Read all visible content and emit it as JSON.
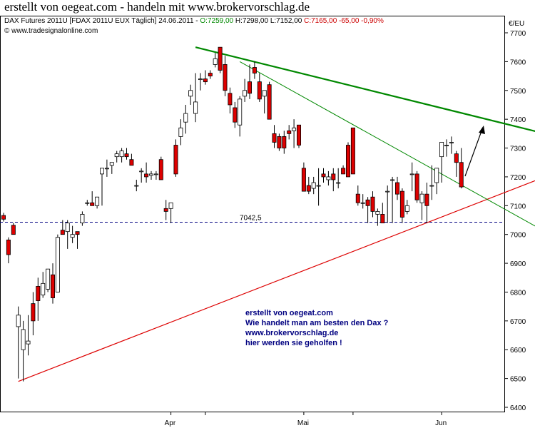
{
  "page_title": "erstellt von oegeat.com - handeln mit www.brokervorschlag.de",
  "header": {
    "instrument": "DAX Futures 2011U [FDAX 2011U EUX  Täglich] 24.06.2011 - ",
    "open": "O:7259,00",
    "high_low": " H:7298,00 L:7152,00 ",
    "close": "C:7165,00 -65,00 -0,90%",
    "copyright": "© www.tradesignalonline.com"
  },
  "colors": {
    "up": "#ffffff",
    "down": "#dd0000",
    "wick": "#000000",
    "support": "#dd0000",
    "resistance": "#008800",
    "level": "#000080",
    "open_text": "#008800",
    "close_text": "#cc0000"
  },
  "chart_data": {
    "type": "candlestick",
    "unit_label": "€/EU",
    "y_ticks": [
      6400,
      6500,
      6600,
      6700,
      6800,
      6900,
      7000,
      7100,
      7200,
      7300,
      7400,
      7500,
      7600,
      7700
    ],
    "y_tick_labels": [
      "6400",
      "6500",
      "6600",
      "6700",
      "6800",
      "6900",
      "7000",
      "7100",
      "7200",
      "7300",
      "7400",
      "7500",
      "7600",
      "7700"
    ],
    "ylim": [
      6400,
      7780
    ],
    "x_labels": [
      {
        "label": "Apr",
        "bar": 34
      },
      {
        "label": "Mai",
        "bar": 61
      },
      {
        "label": "Jun",
        "bar": 89
      }
    ],
    "horizontal_level": {
      "value": 7042.5,
      "label": "7042,5"
    },
    "candles": [
      [
        7066,
        7075,
        7045,
        7053
      ],
      [
        6981,
        6990,
        6900,
        6930
      ],
      [
        7032,
        7040,
        7000,
        7000
      ],
      [
        6680,
        6750,
        6500,
        6720
      ],
      [
        6600,
        6700,
        6490,
        6670
      ],
      [
        6620,
        6720,
        6580,
        6630
      ],
      [
        6760,
        6800,
        6650,
        6700
      ],
      [
        6820,
        6850,
        6700,
        6770
      ],
      [
        6790,
        6870,
        6780,
        6830
      ],
      [
        6810,
        6880,
        6800,
        6880
      ],
      [
        6860,
        6900,
        6760,
        6780
      ],
      [
        6800,
        7000,
        6800,
        6990
      ],
      [
        7015,
        7050,
        7000,
        7000
      ],
      [
        7010,
        7050,
        6950,
        7040
      ],
      [
        6990,
        7030,
        6970,
        7000
      ],
      [
        7010,
        7000,
        6950,
        7000
      ],
      [
        7040,
        7080,
        7030,
        7070
      ],
      [
        7110,
        7120,
        7100,
        7110
      ],
      [
        7110,
        7150,
        7100,
        7100
      ],
      [
        7100,
        7130,
        7090,
        7130
      ],
      [
        7210,
        7230,
        7100,
        7230
      ],
      [
        7230,
        7260,
        7200,
        7230
      ],
      [
        7240,
        7250,
        7210,
        7250
      ],
      [
        7270,
        7290,
        7250,
        7280
      ],
      [
        7270,
        7300,
        7250,
        7290
      ],
      [
        7280,
        7300,
        7260,
        7270
      ],
      [
        7260,
        7280,
        7240,
        7240
      ],
      [
        7170,
        7190,
        7150,
        7170
      ],
      [
        7220,
        7230,
        7180,
        7220
      ],
      [
        7210,
        7250,
        7180,
        7200
      ],
      [
        7205,
        7220,
        7190,
        7210
      ],
      [
        7210,
        7220,
        7190,
        7210
      ],
      [
        7260,
        7270,
        7190,
        7190
      ],
      [
        7090,
        7120,
        7050,
        7080
      ],
      [
        7090,
        7110,
        7040,
        7110
      ],
      [
        7310,
        7330,
        7200,
        7210
      ],
      [
        7340,
        7400,
        7310,
        7370
      ],
      [
        7390,
        7450,
        7350,
        7420
      ],
      [
        7480,
        7520,
        7450,
        7500
      ],
      [
        7420,
        7560,
        7390,
        7460
      ],
      [
        7540,
        7560,
        7500,
        7540
      ],
      [
        7540,
        7570,
        7520,
        7530
      ],
      [
        7560,
        7570,
        7540,
        7550
      ],
      [
        7590,
        7630,
        7580,
        7610
      ],
      [
        7650,
        7650,
        7560,
        7570
      ],
      [
        7590,
        7620,
        7480,
        7500
      ],
      [
        7490,
        7510,
        7420,
        7450
      ],
      [
        7440,
        7460,
        7370,
        7390
      ],
      [
        7380,
        7480,
        7340,
        7470
      ],
      [
        7480,
        7540,
        7460,
        7500
      ],
      [
        7530,
        7590,
        7470,
        7490
      ],
      [
        7580,
        7600,
        7540,
        7560
      ],
      [
        7530,
        7560,
        7460,
        7470
      ],
      [
        7480,
        7500,
        7420,
        7500
      ],
      [
        7520,
        7530,
        7400,
        7400
      ],
      [
        7350,
        7380,
        7300,
        7320
      ],
      [
        7340,
        7350,
        7290,
        7300
      ],
      [
        7340,
        7360,
        7280,
        7300
      ],
      [
        7360,
        7380,
        7330,
        7350
      ],
      [
        7360,
        7400,
        7300,
        7370
      ],
      [
        7380,
        7380,
        7300,
        7310
      ],
      [
        7230,
        7250,
        7150,
        7150
      ],
      [
        7170,
        7200,
        7140,
        7150
      ],
      [
        7160,
        7200,
        7140,
        7180
      ],
      [
        7170,
        7230,
        7100,
        7170
      ],
      [
        7210,
        7230,
        7180,
        7200
      ],
      [
        7190,
        7220,
        7170,
        7200
      ],
      [
        7210,
        7230,
        7150,
        7190
      ],
      [
        7180,
        7230,
        7160,
        7180
      ],
      [
        7230,
        7240,
        7210,
        7210
      ],
      [
        7310,
        7320,
        7210,
        7200
      ],
      [
        7370,
        7370,
        7220,
        7210
      ],
      [
        7140,
        7170,
        7100,
        7110
      ],
      [
        7110,
        7140,
        7090,
        7110
      ],
      [
        7120,
        7130,
        7040,
        7100
      ],
      [
        7130,
        7150,
        7060,
        7080
      ],
      [
        7070,
        7090,
        7030,
        7080
      ],
      [
        7070,
        7110,
        7040,
        7040
      ],
      [
        7150,
        7170,
        7040,
        7150
      ],
      [
        7190,
        7200,
        7040,
        7190
      ],
      [
        7180,
        7200,
        7120,
        7140
      ],
      [
        7150,
        7160,
        7040,
        7060
      ],
      [
        7080,
        7120,
        7070,
        7100
      ],
      [
        7210,
        7250,
        7150,
        7210
      ],
      [
        7210,
        7220,
        7110,
        7120
      ],
      [
        7110,
        7150,
        7050,
        7140
      ],
      [
        7140,
        7180,
        7040,
        7100
      ],
      [
        7170,
        7240,
        7120,
        7170
      ],
      [
        7180,
        7220,
        7140,
        7230
      ],
      [
        7270,
        7310,
        7180,
        7320
      ],
      [
        7310,
        7330,
        7270,
        7310
      ],
      [
        7320,
        7340,
        7280,
        7320
      ],
      [
        7280,
        7290,
        7200,
        7250
      ],
      [
        7250,
        7300,
        7160,
        7165
      ]
    ],
    "support_line": {
      "from": {
        "bar": 3,
        "value": 6490
      },
      "to": {
        "bar": 110,
        "value": 7200
      }
    },
    "resistance_line": {
      "from": {
        "bar": 39,
        "value": 7650
      },
      "to": {
        "bar": 110,
        "value": 7350
      }
    },
    "resistance_line_2": {
      "from": {
        "bar": 48,
        "value": 7600
      },
      "to": {
        "bar": 110,
        "value": 7010
      }
    },
    "annotation": [
      "erstellt von oegeat.com",
      "Wie handelt man am besten den Dax ?",
      "www.brokervorschlag.de",
      "hier werden sie geholfen !"
    ]
  }
}
